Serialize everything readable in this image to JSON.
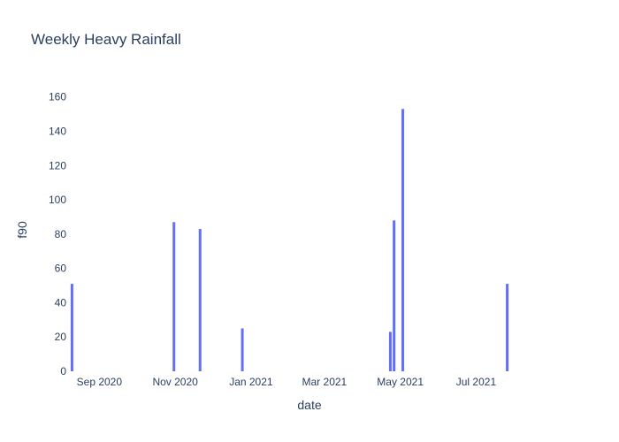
{
  "chart_data": {
    "type": "bar",
    "title": "Weekly Heavy Rainfall",
    "xlabel": "date",
    "ylabel": "f90",
    "x_axis_type": "date",
    "xlim": [
      "2020-08-09",
      "2021-08-28"
    ],
    "ylim": [
      0,
      165
    ],
    "y_ticks": [
      0,
      20,
      40,
      60,
      80,
      100,
      120,
      140,
      160
    ],
    "x_ticks": [
      {
        "date": "2020-09-01",
        "label": "Sep 2020"
      },
      {
        "date": "2020-11-01",
        "label": "Nov 2020"
      },
      {
        "date": "2021-01-01",
        "label": "Jan 2021"
      },
      {
        "date": "2021-03-01",
        "label": "Mar 2021"
      },
      {
        "date": "2021-05-01",
        "label": "May 2021"
      },
      {
        "date": "2021-07-01",
        "label": "Jul 2021"
      }
    ],
    "grid": false,
    "legend": "none",
    "bar_color": "#636efa",
    "points": [
      {
        "x": "2020-08-10",
        "y": 51
      },
      {
        "x": "2020-10-31",
        "y": 87
      },
      {
        "x": "2020-11-21",
        "y": 83
      },
      {
        "x": "2020-12-25",
        "y": 25
      },
      {
        "x": "2021-04-23",
        "y": 23
      },
      {
        "x": "2021-04-26",
        "y": 88
      },
      {
        "x": "2021-05-03",
        "y": 153
      },
      {
        "x": "2021-07-26",
        "y": 51
      }
    ]
  }
}
